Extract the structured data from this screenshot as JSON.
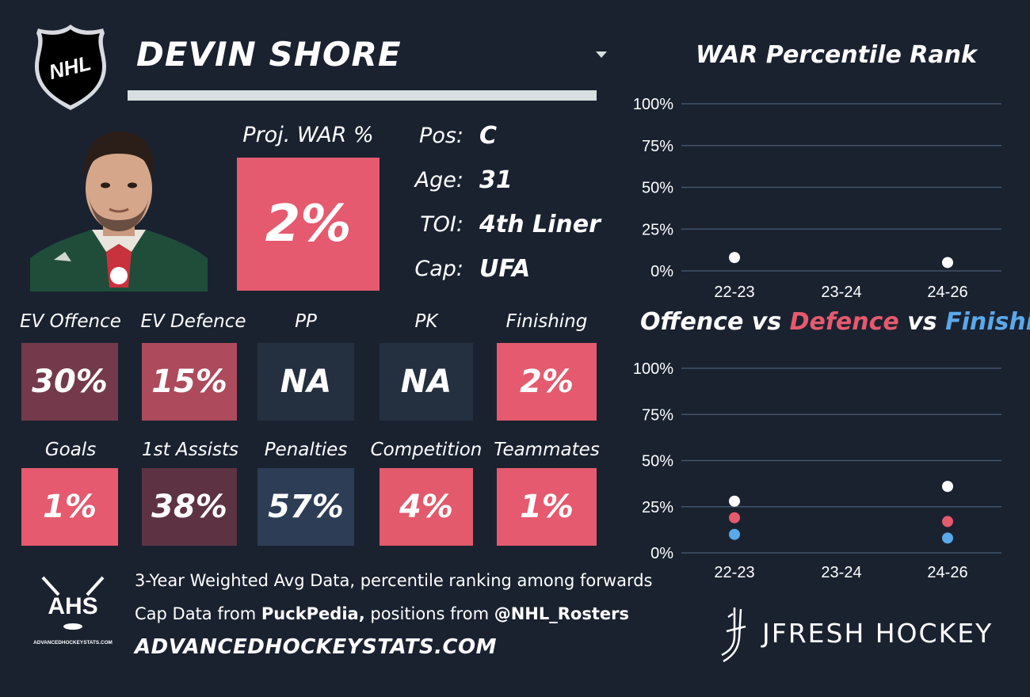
{
  "header": {
    "player_name": "DEVIN SHORE",
    "league_logo_text": "NHL",
    "logo_icon": "nhl-shield-icon",
    "dropdown_icon": "caret-down-icon"
  },
  "projection": {
    "label": "Proj. WAR %",
    "value": "2%"
  },
  "info": [
    {
      "label": "Pos:",
      "value": "C"
    },
    {
      "label": "Age:",
      "value": "31"
    },
    {
      "label": "TOI:",
      "value": "4th Liner"
    },
    {
      "label": "Cap:",
      "value": "UFA"
    }
  ],
  "stats_row1": [
    {
      "label": "EV Offence",
      "value": "30%",
      "color": "#743a4b"
    },
    {
      "label": "EV Defence",
      "value": "15%",
      "color": "#ad4a5c"
    },
    {
      "label": "PP",
      "value": "NA",
      "color": "#243040"
    },
    {
      "label": "PK",
      "value": "NA",
      "color": "#243040"
    },
    {
      "label": "Finishing",
      "value": "2%",
      "color": "#e55a6e"
    }
  ],
  "stats_row2": [
    {
      "label": "Goals",
      "value": "1%",
      "color": "#e55a6e"
    },
    {
      "label": "1st Assists",
      "value": "38%",
      "color": "#5d3344"
    },
    {
      "label": "Penalties",
      "value": "57%",
      "color": "#2c3d55"
    },
    {
      "label": "Competition",
      "value": "4%",
      "color": "#e25a6c"
    },
    {
      "label": "Teammates",
      "value": "1%",
      "color": "#e55a6e"
    }
  ],
  "footer": {
    "logo_text": "AHS",
    "logo_subtext": "ADVANCEDHOCKEYSTATS.COM",
    "line1": "3-Year Weighted Avg Data, percentile ranking among forwards",
    "line2_prefix": "Cap Data from ",
    "line2_source": "PuckPedia,",
    "line2_mid": " positions from ",
    "line2_handle": "@NHL_Rosters",
    "site_url": "ADVANCEDHOCKEYSTATS.COM",
    "brand": "JFRESH HOCKEY"
  },
  "chart_data": [
    {
      "type": "scatter",
      "title": "WAR Percentile Rank",
      "categories": [
        "22-23",
        "23-24",
        "24-26"
      ],
      "yticks": [
        "100%",
        "75%",
        "50%",
        "25%",
        "0%"
      ],
      "ylim": [
        0,
        100
      ],
      "grid": true,
      "series": [
        {
          "values": [
            8,
            null,
            5
          ],
          "color": "#ffffff"
        }
      ]
    },
    {
      "type": "scatter",
      "title_parts": [
        {
          "text": "Offence",
          "color": "#ffffff"
        },
        {
          "text": " vs ",
          "color": "#ffffff"
        },
        {
          "text": "Defence",
          "color": "#e55a6e"
        },
        {
          "text": " vs ",
          "color": "#ffffff"
        },
        {
          "text": "Finishing",
          "color": "#5aa9ea"
        }
      ],
      "categories": [
        "22-23",
        "23-24",
        "24-26"
      ],
      "yticks": [
        "100%",
        "75%",
        "50%",
        "25%",
        "0%"
      ],
      "ylim": [
        0,
        100
      ],
      "grid": true,
      "series": [
        {
          "name": "Offence",
          "values": [
            28,
            null,
            36
          ],
          "color": "#ffffff"
        },
        {
          "name": "Defence",
          "values": [
            19,
            null,
            17
          ],
          "color": "#e55a6e"
        },
        {
          "name": "Finishing",
          "values": [
            10,
            null,
            8
          ],
          "color": "#5aa9ea"
        }
      ]
    }
  ]
}
